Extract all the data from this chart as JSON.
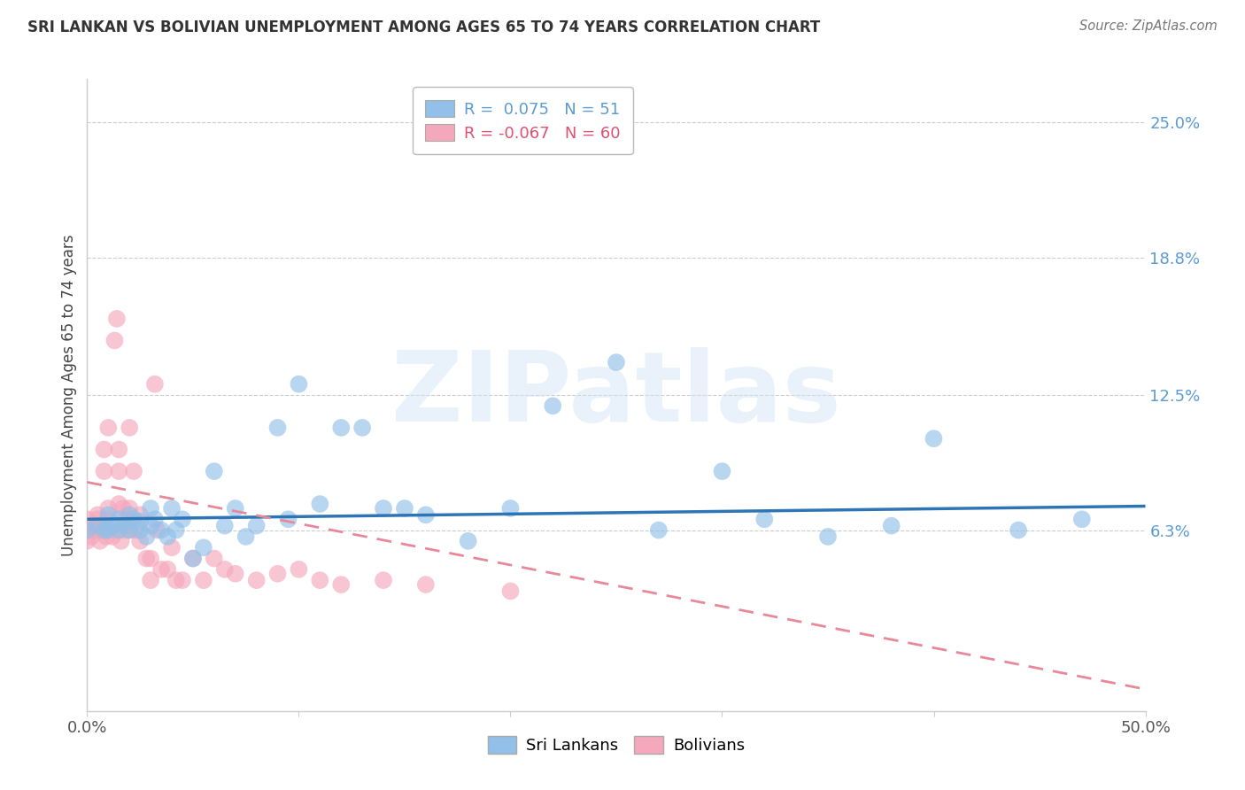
{
  "title": "SRI LANKAN VS BOLIVIAN UNEMPLOYMENT AMONG AGES 65 TO 74 YEARS CORRELATION CHART",
  "source": "Source: ZipAtlas.com",
  "ylabel": "Unemployment Among Ages 65 to 74 years",
  "xlim": [
    0.0,
    0.5
  ],
  "ylim": [
    -0.02,
    0.27
  ],
  "xticks": [
    0.0,
    0.1,
    0.2,
    0.3,
    0.4,
    0.5
  ],
  "xtick_labels": [
    "0.0%",
    "",
    "",
    "",
    "",
    "50.0%"
  ],
  "ytick_right_vals": [
    0.063,
    0.125,
    0.188,
    0.25
  ],
  "ytick_right_labels": [
    "6.3%",
    "12.5%",
    "18.8%",
    "25.0%"
  ],
  "sri_lankan_color": "#92C0E8",
  "bolivian_color": "#F5A8BC",
  "sri_lankan_R": 0.075,
  "sri_lankan_N": 51,
  "bolivian_R": -0.067,
  "bolivian_N": 60,
  "sri_lankan_x": [
    0.0,
    0.005,
    0.008,
    0.01,
    0.01,
    0.012,
    0.015,
    0.015,
    0.018,
    0.02,
    0.02,
    0.022,
    0.025,
    0.025,
    0.028,
    0.03,
    0.03,
    0.032,
    0.035,
    0.038,
    0.04,
    0.042,
    0.045,
    0.05,
    0.055,
    0.06,
    0.065,
    0.07,
    0.075,
    0.08,
    0.09,
    0.095,
    0.1,
    0.11,
    0.12,
    0.13,
    0.14,
    0.15,
    0.16,
    0.18,
    0.2,
    0.22,
    0.25,
    0.27,
    0.3,
    0.32,
    0.35,
    0.38,
    0.4,
    0.44,
    0.47
  ],
  "sri_lankan_y": [
    0.063,
    0.065,
    0.063,
    0.07,
    0.063,
    0.065,
    0.063,
    0.068,
    0.065,
    0.07,
    0.063,
    0.068,
    0.063,
    0.067,
    0.06,
    0.065,
    0.073,
    0.068,
    0.063,
    0.06,
    0.073,
    0.063,
    0.068,
    0.05,
    0.055,
    0.09,
    0.065,
    0.073,
    0.06,
    0.065,
    0.11,
    0.068,
    0.13,
    0.075,
    0.11,
    0.11,
    0.073,
    0.073,
    0.07,
    0.058,
    0.073,
    0.12,
    0.14,
    0.063,
    0.09,
    0.068,
    0.06,
    0.065,
    0.105,
    0.063,
    0.068
  ],
  "bolivian_x": [
    0.0,
    0.0,
    0.0,
    0.0,
    0.002,
    0.003,
    0.004,
    0.005,
    0.005,
    0.005,
    0.006,
    0.007,
    0.008,
    0.008,
    0.009,
    0.01,
    0.01,
    0.01,
    0.01,
    0.012,
    0.013,
    0.014,
    0.015,
    0.015,
    0.015,
    0.015,
    0.016,
    0.017,
    0.018,
    0.018,
    0.02,
    0.02,
    0.02,
    0.022,
    0.023,
    0.025,
    0.025,
    0.028,
    0.03,
    0.03,
    0.032,
    0.033,
    0.035,
    0.038,
    0.04,
    0.042,
    0.045,
    0.05,
    0.055,
    0.06,
    0.065,
    0.07,
    0.08,
    0.09,
    0.1,
    0.11,
    0.12,
    0.14,
    0.16,
    0.2
  ],
  "bolivian_y": [
    0.063,
    0.068,
    0.063,
    0.058,
    0.06,
    0.063,
    0.065,
    0.07,
    0.063,
    0.068,
    0.058,
    0.063,
    0.09,
    0.1,
    0.06,
    0.063,
    0.068,
    0.073,
    0.11,
    0.06,
    0.15,
    0.16,
    0.063,
    0.075,
    0.09,
    0.1,
    0.058,
    0.073,
    0.063,
    0.068,
    0.063,
    0.073,
    0.11,
    0.09,
    0.063,
    0.058,
    0.07,
    0.05,
    0.05,
    0.04,
    0.13,
    0.063,
    0.045,
    0.045,
    0.055,
    0.04,
    0.04,
    0.05,
    0.04,
    0.05,
    0.045,
    0.043,
    0.04,
    0.043,
    0.045,
    0.04,
    0.038,
    0.04,
    0.038,
    0.035
  ],
  "watermark_text": "ZIPatlas",
  "background_color": "#ffffff",
  "grid_color": "#cccccc",
  "title_color": "#333333",
  "axis_label_color": "#444444",
  "right_tick_color": "#5B9BD5",
  "legend_sri_color": "#5B9BD5",
  "legend_bol_color": "#E05070",
  "trend_sri_color": "#2E75B6",
  "trend_bol_color": "#E8889A"
}
